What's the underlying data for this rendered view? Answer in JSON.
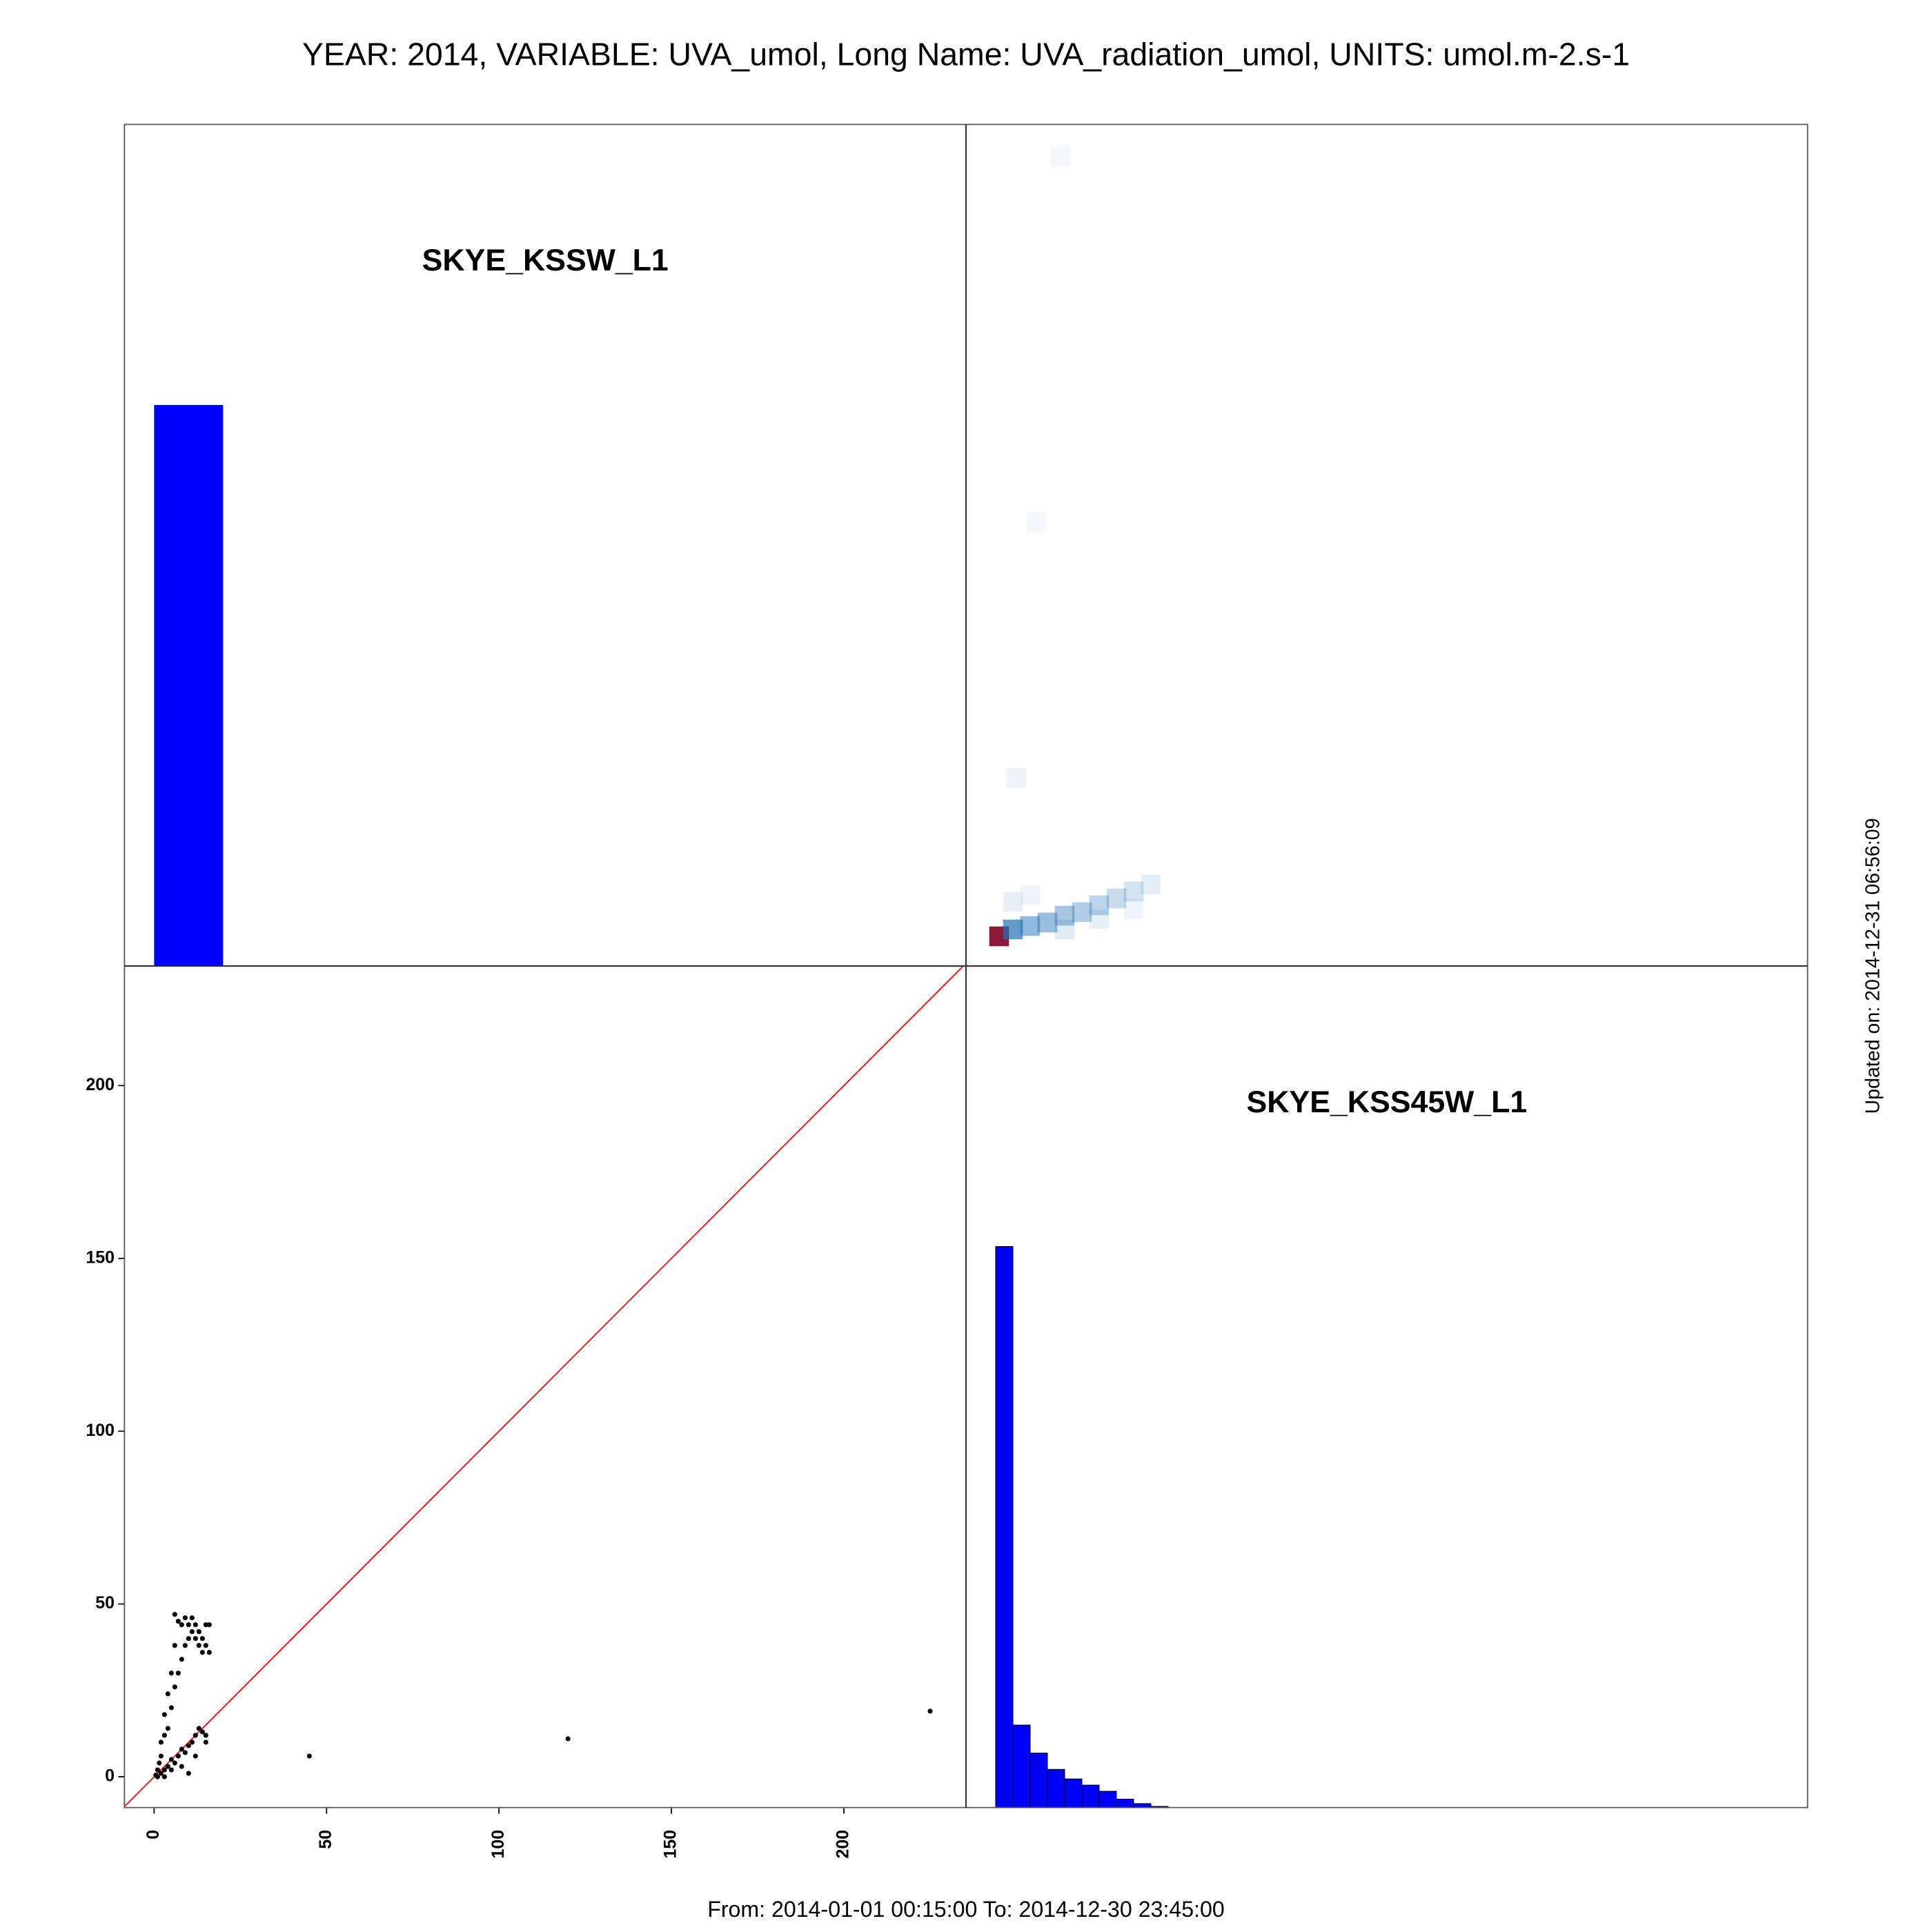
{
  "title": "YEAR: 2014, VARIABLE: UVA_umol, Long Name: UVA_radiation_umol, UNITS: umol.m-2.s-1",
  "footer": "From: 2014-01-01 00:15:00 To: 2014-12-30 23:45:00",
  "updated": "Updated on: 2014-12-31 06:56:09",
  "chart_data": [
    {
      "type": "histogram",
      "label": "SKYE_KSSW_L1",
      "bins": [
        0,
        20
      ],
      "counts": [
        100
      ],
      "color": "#0000ff",
      "xlim": [
        -8.6,
        235.4
      ],
      "ylim": [
        0,
        150
      ]
    },
    {
      "type": "density",
      "x": [
        1,
        5,
        10,
        15,
        20,
        25,
        30,
        35,
        40,
        45,
        5,
        10,
        6,
        12,
        19,
        20,
        30,
        40
      ],
      "y": [
        0,
        2,
        3,
        4,
        6,
        7,
        9,
        11,
        13,
        15,
        10,
        12,
        46,
        120,
        226,
        2,
        5,
        8
      ],
      "values": [
        1,
        0.7,
        0.5,
        0.45,
        0.4,
        0.35,
        0.3,
        0.25,
        0.2,
        0.12,
        0.1,
        0.08,
        0.08,
        0.06,
        0.05,
        0.15,
        0.1,
        0.08
      ],
      "color": "#2171b5",
      "xlim": [
        -8.6,
        235.4
      ],
      "ylim": [
        -8.6,
        235.4
      ]
    },
    {
      "type": "scatter",
      "x": [
        0.5,
        1,
        1.5,
        2,
        2,
        3,
        3,
        4,
        4,
        5,
        5,
        6,
        6,
        7,
        7,
        8,
        8,
        9,
        9,
        10,
        10,
        11,
        11,
        12,
        12,
        13,
        13,
        14,
        14,
        15,
        15,
        16,
        16,
        1,
        2,
        3,
        4,
        5,
        6,
        7,
        8,
        9,
        10,
        11,
        12,
        13,
        14,
        15,
        45,
        120,
        225,
        3,
        5,
        8,
        12,
        15,
        10,
        6
      ],
      "y": [
        0.5,
        2,
        4,
        6,
        10,
        12,
        18,
        14,
        24,
        20,
        30,
        26,
        38,
        30,
        45,
        34,
        44,
        38,
        46,
        40,
        44,
        42,
        46,
        40,
        44,
        38,
        42,
        36,
        40,
        38,
        44,
        36,
        44,
        0,
        1,
        2,
        3,
        5,
        4,
        6,
        8,
        7,
        9,
        10,
        12,
        14,
        13,
        12,
        6,
        11,
        19,
        0,
        2,
        3,
        6,
        10,
        1,
        47
      ],
      "color": "#000000",
      "line_color": "#ff0000",
      "xlim": [
        -8.6,
        235.4
      ],
      "ylim": [
        -8.9,
        234.6
      ],
      "xticks": [
        0,
        50,
        100,
        150,
        200
      ],
      "yticks": [
        0,
        50,
        100,
        150,
        200
      ]
    },
    {
      "type": "histogram",
      "label": "SKYE_KSS45W_L1",
      "bins": [
        0,
        5,
        10,
        15,
        20,
        25,
        30,
        35,
        40,
        45,
        50
      ],
      "counts": [
        100,
        14.7,
        9.7,
        6.8,
        5.1,
        4.0,
        2.9,
        1.5,
        0.7,
        0.2
      ],
      "color": "#0000ff",
      "xlim": [
        -8.6,
        235.4
      ],
      "ylim": [
        0,
        150
      ]
    }
  ]
}
